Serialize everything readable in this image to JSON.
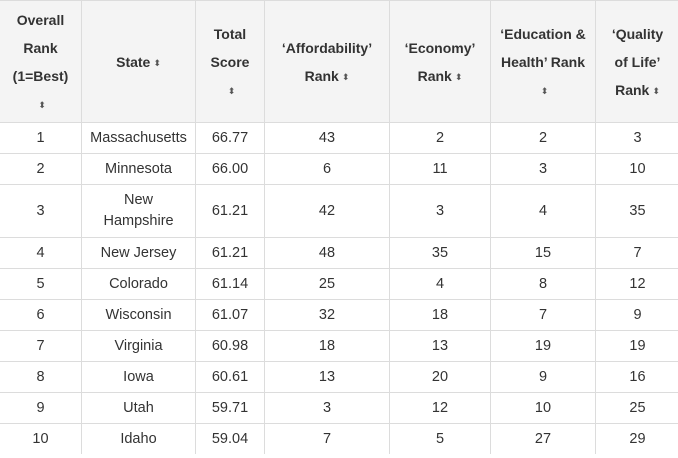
{
  "columns": [
    {
      "label": "Overall Rank (1=Best)",
      "sort_icon": "sort-arrows-icon"
    },
    {
      "label": "State",
      "sort_icon": "sort-arrows-icon"
    },
    {
      "label": "Total Score",
      "sort_icon": "sort-arrows-icon"
    },
    {
      "label": "‘Affordability’ Rank",
      "sort_icon": "sort-arrows-icon"
    },
    {
      "label": "‘Economy’ Rank",
      "sort_icon": "sort-arrows-icon"
    },
    {
      "label": "‘Education & Health’ Rank",
      "sort_icon": "sort-arrows-icon"
    },
    {
      "label": "‘Quality of Life’ Rank",
      "sort_icon": "sort-arrows-icon"
    }
  ],
  "sort_glyph": "⬍",
  "rows": [
    [
      "1",
      "Massachusetts",
      "66.77",
      "43",
      "2",
      "2",
      "3"
    ],
    [
      "2",
      "Minnesota",
      "66.00",
      "6",
      "11",
      "3",
      "10"
    ],
    [
      "3",
      "New Hampshire",
      "61.21",
      "42",
      "3",
      "4",
      "35"
    ],
    [
      "4",
      "New Jersey",
      "61.21",
      "48",
      "35",
      "15",
      "7"
    ],
    [
      "5",
      "Colorado",
      "61.14",
      "25",
      "4",
      "8",
      "12"
    ],
    [
      "6",
      "Wisconsin",
      "61.07",
      "32",
      "18",
      "7",
      "9"
    ],
    [
      "7",
      "Virginia",
      "60.98",
      "18",
      "13",
      "19",
      "19"
    ],
    [
      "8",
      "Iowa",
      "60.61",
      "13",
      "20",
      "9",
      "16"
    ],
    [
      "9",
      "Utah",
      "59.71",
      "3",
      "12",
      "10",
      "25"
    ],
    [
      "10",
      "Idaho",
      "59.04",
      "7",
      "5",
      "27",
      "29"
    ]
  ]
}
